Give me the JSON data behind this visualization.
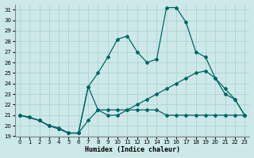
{
  "xlabel": "Humidex (Indice chaleur)",
  "xlim": [
    -0.5,
    23.5
  ],
  "ylim": [
    19,
    31.5
  ],
  "yticks": [
    19,
    20,
    21,
    22,
    23,
    24,
    25,
    26,
    27,
    28,
    29,
    30,
    31
  ],
  "xticks": [
    0,
    1,
    2,
    3,
    4,
    5,
    6,
    7,
    8,
    9,
    10,
    11,
    12,
    13,
    14,
    15,
    16,
    17,
    18,
    19,
    20,
    21,
    22,
    23
  ],
  "bg_color": "#cce8e8",
  "grid_color": "#aacece",
  "line_color": "#006666",
  "line1_x": [
    0,
    1,
    2,
    3,
    4,
    5,
    6,
    7,
    8,
    9,
    10,
    11,
    12,
    13,
    14,
    15,
    16,
    17,
    18,
    19,
    20,
    21,
    22,
    23
  ],
  "line1_y": [
    21.0,
    20.8,
    20.5,
    20.0,
    19.7,
    19.3,
    19.3,
    20.5,
    21.5,
    21.5,
    21.5,
    21.5,
    21.5,
    21.5,
    21.5,
    21.0,
    21.0,
    21.0,
    21.0,
    21.0,
    21.0,
    21.0,
    21.0,
    21.0
  ],
  "line2_x": [
    0,
    2,
    3,
    4,
    5,
    6,
    7,
    8,
    9,
    10,
    11,
    12,
    13,
    14,
    15,
    16,
    17,
    18,
    19,
    20,
    21,
    22,
    23
  ],
  "line2_y": [
    21.0,
    20.5,
    20.0,
    19.8,
    19.3,
    19.3,
    23.7,
    21.5,
    21.0,
    21.0,
    21.5,
    22.0,
    22.5,
    23.0,
    23.5,
    24.0,
    24.5,
    25.0,
    25.2,
    24.5,
    23.5,
    22.5,
    21.0
  ],
  "line3_x": [
    0,
    1,
    2,
    3,
    4,
    5,
    6,
    7,
    8,
    9,
    10,
    11,
    12,
    13,
    14,
    15,
    16,
    17,
    18,
    19,
    20,
    21,
    22,
    23
  ],
  "line3_y": [
    21.0,
    20.8,
    20.5,
    20.0,
    19.7,
    19.3,
    19.3,
    23.7,
    25.0,
    26.5,
    28.2,
    28.5,
    27.0,
    26.0,
    26.3,
    31.2,
    31.2,
    29.8,
    27.0,
    26.5,
    24.5,
    23.0,
    22.5,
    21.0
  ]
}
